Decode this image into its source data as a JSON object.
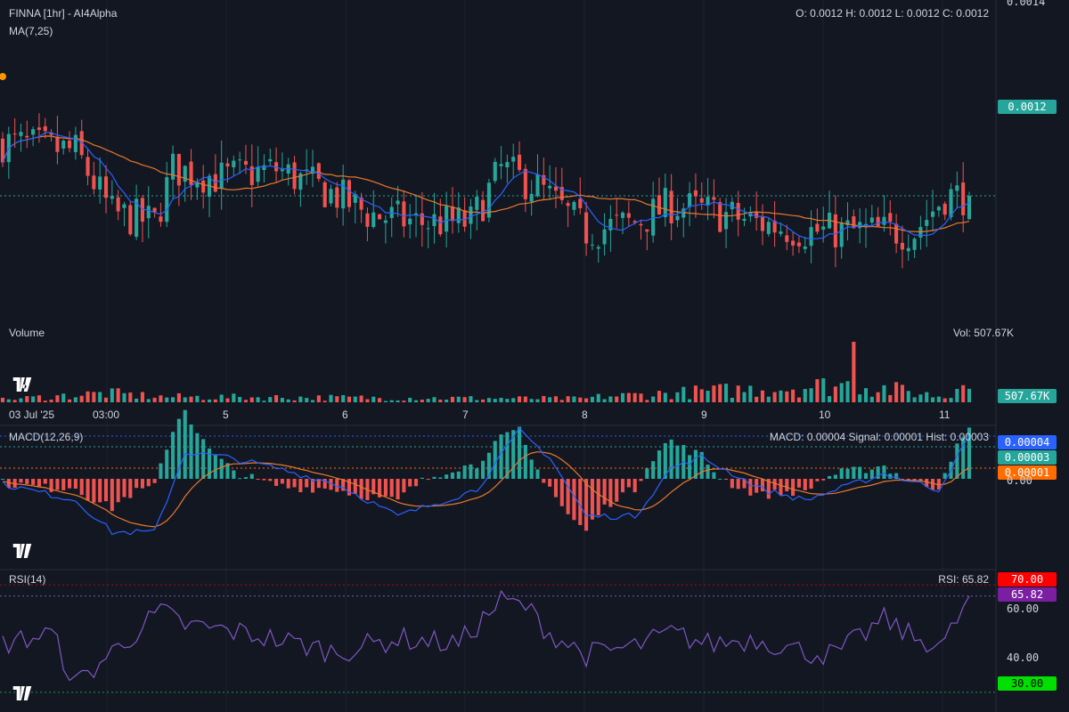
{
  "header": {
    "title": "FINNA [1hr] - AI4Alpha",
    "ma_label": "MA(7,25)",
    "ohlc": "O: 0.0012 H: 0.0012 L: 0.0012 C: 0.0012",
    "price_axis_top": "0.0014",
    "last_price": "0.0012"
  },
  "volume": {
    "label": "Volume",
    "summary": "Vol: 507.67K",
    "last_tag": "507.67K"
  },
  "xaxis": {
    "labels": [
      "03 Jul '25",
      "03:00",
      "5",
      "6",
      "7",
      "8",
      "9",
      "10",
      "11"
    ]
  },
  "macd": {
    "label": "MACD(12,26,9)",
    "summary": "MACD: 0.00004 Signal: 0.00001 Hist: 0.00003",
    "tag_macd": "0.00004",
    "tag_hist": "0.00003",
    "tag_signal": "0.00001",
    "axis_zero": "0.00"
  },
  "rsi": {
    "label": "RSI(14)",
    "summary": "RSI: 65.82",
    "tag_upper": "70.00",
    "tag_value": "65.82",
    "tag_lower": "30.00",
    "axis_60": "60.00",
    "axis_40": "40.00"
  },
  "colors": {
    "background": "#131722",
    "up": "#26a69a",
    "down": "#ef5350",
    "ma_fast": "#2962ff",
    "ma_slow": "#e8792e",
    "rsi_line": "#7e57c2",
    "rsi_upper": "#ff0000",
    "rsi_lower": "#00c853",
    "macd_tag": "#2962ff",
    "signal_tag": "#ff6d00"
  },
  "icons": [
    "tradingview-logo-icon"
  ],
  "chart_data": [
    {
      "type": "candlestick",
      "title": "FINNA [1hr] - AI4Alpha",
      "xlabel": "",
      "ylabel": "",
      "ylim": [
        0.00108,
        0.00142
      ],
      "last_close": 0.0012,
      "series": [
        {
          "name": "MA(7,25)",
          "kind": "moving_average",
          "periods": [
            7,
            25
          ]
        }
      ],
      "candle_count": 160,
      "guide_points": [
        [
          0,
          0.00126
        ],
        [
          12,
          0.00125
        ],
        [
          18,
          0.00118
        ],
        [
          25,
          0.00117
        ],
        [
          28,
          0.00123
        ],
        [
          36,
          0.00122
        ],
        [
          45,
          0.00123
        ],
        [
          55,
          0.0012
        ],
        [
          60,
          0.00118
        ],
        [
          68,
          0.00117
        ],
        [
          77,
          0.00117
        ],
        [
          82,
          0.00123
        ],
        [
          88,
          0.00121
        ],
        [
          96,
          0.00116
        ],
        [
          104,
          0.00117
        ],
        [
          110,
          0.00119
        ],
        [
          118,
          0.00118
        ],
        [
          124,
          0.00117
        ],
        [
          132,
          0.00116
        ],
        [
          137,
          0.00116
        ],
        [
          145,
          0.00116
        ],
        [
          150,
          0.00116
        ],
        [
          155,
          0.0012
        ],
        [
          159,
          0.0012
        ]
      ]
    },
    {
      "type": "bar",
      "title": "Volume",
      "last_value": "507.67K",
      "guide_points": [
        [
          0,
          0.15
        ],
        [
          17,
          0.5
        ],
        [
          26,
          0.3
        ],
        [
          60,
          0.25
        ],
        [
          96,
          0.2
        ],
        [
          98,
          0.3
        ],
        [
          140,
          1.0
        ],
        [
          155,
          0.3
        ],
        [
          159,
          0.25
        ]
      ]
    },
    {
      "type": "line",
      "title": "MACD(12,26,9)",
      "series": [
        {
          "name": "MACD",
          "last": 4e-05
        },
        {
          "name": "Signal",
          "last": 1e-05
        },
        {
          "name": "Hist",
          "last": 3e-05
        }
      ],
      "ylim": [
        -6e-05,
        4e-05
      ],
      "guide_points": [
        [
          0,
          -5e-06
        ],
        [
          12,
          -2e-05
        ],
        [
          18,
          -5e-05
        ],
        [
          25,
          -5e-05
        ],
        [
          30,
          2.5e-05
        ],
        [
          37,
          2e-05
        ],
        [
          45,
          1e-05
        ],
        [
          55,
          -5e-06
        ],
        [
          65,
          -3.5e-05
        ],
        [
          78,
          -1e-05
        ],
        [
          85,
          4.5e-05
        ],
        [
          90,
          2e-05
        ],
        [
          96,
          -3.5e-05
        ],
        [
          104,
          -3.5e-05
        ],
        [
          110,
          1e-05
        ],
        [
          115,
          2e-05
        ],
        [
          125,
          -1e-05
        ],
        [
          132,
          -2e-05
        ],
        [
          140,
          -5e-06
        ],
        [
          145,
          5e-06
        ],
        [
          154,
          -1e-05
        ],
        [
          159,
          4e-05
        ]
      ]
    },
    {
      "type": "line",
      "title": "RSI(14)",
      "series": [
        {
          "name": "RSI",
          "last": 65.82
        }
      ],
      "ylim": [
        26,
        74
      ],
      "levels": [
        70,
        30
      ],
      "guide_points": [
        [
          0,
          48
        ],
        [
          8,
          52
        ],
        [
          12,
          33
        ],
        [
          18,
          45
        ],
        [
          26,
          60
        ],
        [
          30,
          55
        ],
        [
          40,
          52
        ],
        [
          55,
          45
        ],
        [
          65,
          50
        ],
        [
          75,
          48
        ],
        [
          82,
          64
        ],
        [
          86,
          62
        ],
        [
          90,
          52
        ],
        [
          96,
          44
        ],
        [
          104,
          47
        ],
        [
          110,
          52
        ],
        [
          116,
          48
        ],
        [
          124,
          50
        ],
        [
          132,
          45
        ],
        [
          137,
          44
        ],
        [
          145,
          57
        ],
        [
          150,
          50
        ],
        [
          155,
          48
        ],
        [
          159,
          65.82
        ]
      ]
    }
  ]
}
